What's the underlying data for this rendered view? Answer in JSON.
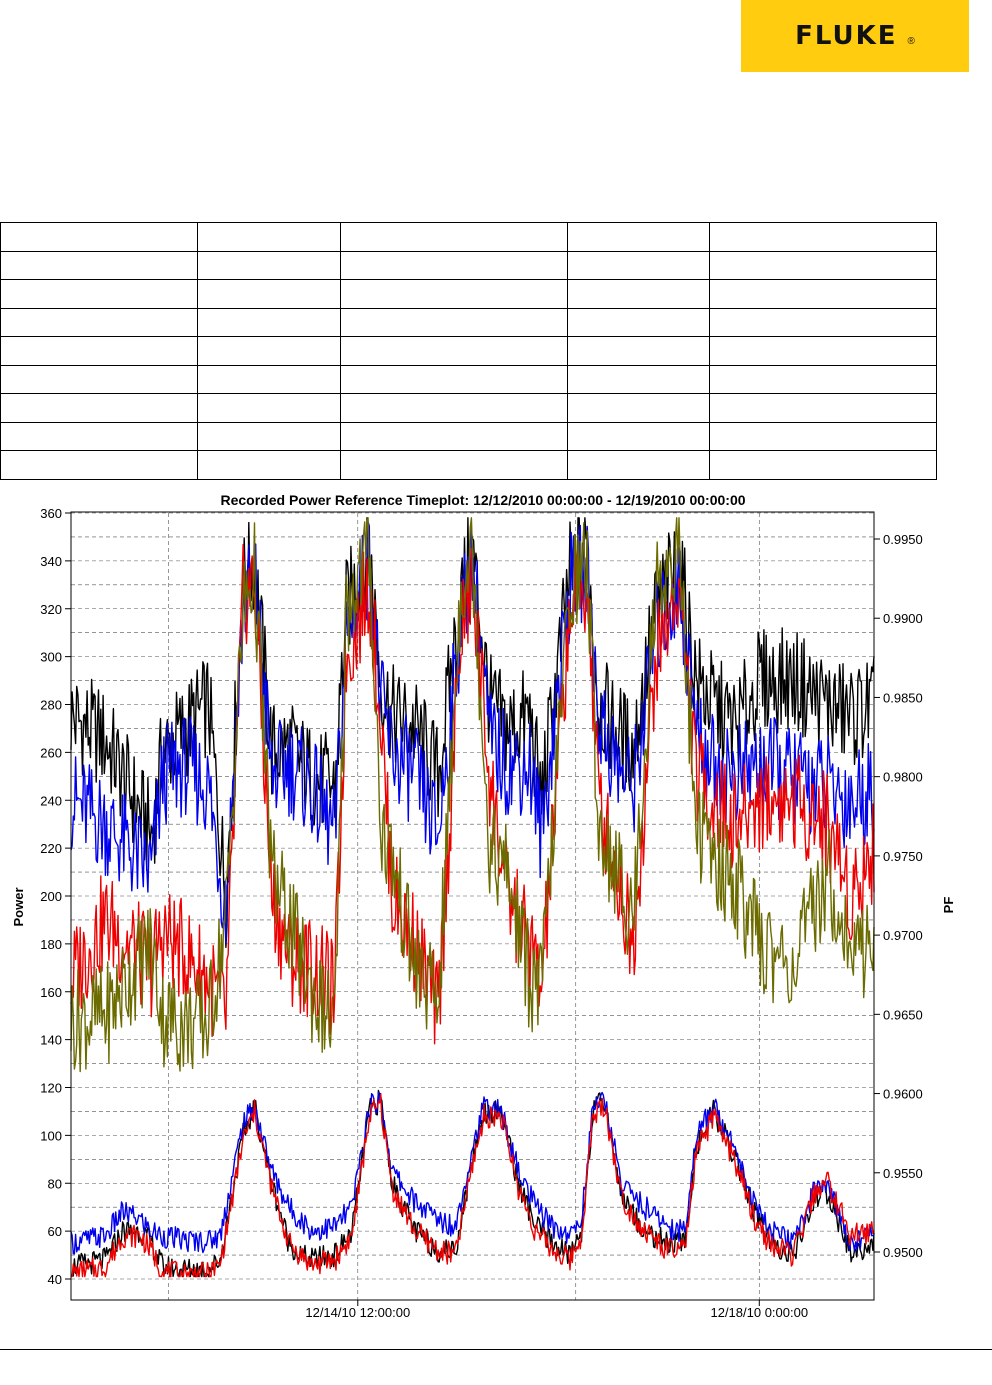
{
  "logo": {
    "text": "FLUKE",
    "reg": "®",
    "color": "#FFCC0F"
  },
  "table": {
    "rows": 9,
    "cols": 5
  },
  "chart_data": {
    "type": "line",
    "title": "Recorded Power Reference Timeplot: 12/12/2010 00:00:00 - 12/19/2010 00:00:00",
    "ylabel": "Power",
    "y2label": "PF",
    "ylim": [
      40,
      360
    ],
    "y2lim": [
      0.948,
      0.9965
    ],
    "yticks": [
      "360",
      "340",
      "320",
      "300",
      "280",
      "260",
      "240",
      "220",
      "200",
      "180",
      "160",
      "140",
      "120",
      "100",
      "80",
      "60",
      "40"
    ],
    "y2ticks": [
      "0.9950",
      "0.9900",
      "0.9850",
      "0.9800",
      "0.9750",
      "0.9700",
      "0.9650",
      "0.9600",
      "0.9550",
      "0.9500"
    ],
    "xlim": [
      0,
      7
    ],
    "xticks": [
      {
        "label": "12/14/10 12:00:00",
        "day": 2.5
      },
      {
        "label": "12/18/10 0:00:00",
        "day": 6
      }
    ],
    "grid": true,
    "series_colors": [
      "#000000",
      "#0000EE",
      "#EE0000",
      "#6B6B00"
    ],
    "series": [
      {
        "color": "#000000",
        "x": [
          0,
          0.3,
          0.7,
          0.8,
          1.0,
          1.2,
          1.35,
          1.5,
          1.6,
          1.75,
          1.9,
          2.1,
          2.3,
          2.4,
          2.6,
          2.7,
          2.8,
          3.0,
          3.2,
          3.4,
          3.5,
          3.65,
          3.8,
          4.0,
          4.1,
          4.35,
          4.5,
          4.6,
          4.75,
          4.9,
          5.1,
          5.3,
          5.45,
          5.6,
          5.8,
          6.0,
          6.3,
          6.6,
          6.8,
          7.0
        ],
        "values": [
          275,
          265,
          225,
          260,
          270,
          280,
          200,
          330,
          340,
          260,
          262,
          250,
          245,
          320,
          345,
          290,
          275,
          270,
          250,
          325,
          345,
          280,
          270,
          275,
          240,
          335,
          345,
          280,
          270,
          260,
          320,
          340,
          290,
          280,
          270,
          290,
          290,
          280,
          275,
          280
        ]
      },
      {
        "color": "#0000EE",
        "x": [
          0,
          0.3,
          0.7,
          0.8,
          1.0,
          1.2,
          1.35,
          1.5,
          1.6,
          1.75,
          1.9,
          2.1,
          2.3,
          2.4,
          2.6,
          2.7,
          2.8,
          3.0,
          3.2,
          3.4,
          3.5,
          3.65,
          3.8,
          4.0,
          4.1,
          4.35,
          4.5,
          4.6,
          4.75,
          4.9,
          5.1,
          5.3,
          5.45,
          5.6,
          5.8,
          6.0,
          6.3,
          6.6,
          6.8,
          7.0
        ],
        "values": [
          240,
          230,
          210,
          250,
          255,
          245,
          195,
          320,
          335,
          250,
          255,
          245,
          225,
          310,
          340,
          280,
          260,
          250,
          225,
          315,
          340,
          265,
          255,
          255,
          225,
          330,
          335,
          275,
          255,
          245,
          310,
          330,
          270,
          255,
          250,
          255,
          250,
          245,
          240,
          245
        ]
      },
      {
        "color": "#EE0000",
        "x": [
          0,
          0.3,
          0.7,
          0.8,
          1.0,
          1.2,
          1.35,
          1.5,
          1.6,
          1.75,
          1.9,
          2.1,
          2.3,
          2.4,
          2.6,
          2.7,
          2.8,
          3.0,
          3.2,
          3.4,
          3.5,
          3.65,
          3.8,
          4.0,
          4.1,
          4.35,
          4.5,
          4.6,
          4.75,
          4.9,
          5.1,
          5.3,
          5.45,
          5.6,
          5.8,
          6.0,
          6.3,
          6.6,
          6.8,
          7.0
        ],
        "values": [
          165,
          190,
          170,
          185,
          175,
          165,
          150,
          325,
          330,
          200,
          175,
          170,
          160,
          300,
          330,
          275,
          200,
          180,
          150,
          310,
          330,
          250,
          200,
          180,
          160,
          320,
          330,
          240,
          210,
          180,
          300,
          330,
          250,
          240,
          230,
          240,
          240,
          230,
          200,
          220
        ]
      },
      {
        "color": "#6B6B00",
        "x": [
          0,
          0.3,
          0.7,
          0.8,
          1.0,
          1.2,
          1.35,
          1.5,
          1.6,
          1.75,
          1.9,
          2.1,
          2.3,
          2.4,
          2.6,
          2.7,
          2.8,
          3.0,
          3.2,
          3.4,
          3.5,
          3.65,
          3.8,
          4.0,
          4.1,
          4.35,
          4.5,
          4.6,
          4.75,
          4.9,
          5.1,
          5.3,
          5.45,
          5.6,
          5.8,
          6.0,
          6.3,
          6.6,
          6.8,
          7.0
        ],
        "values": [
          148,
          150,
          180,
          150,
          146,
          148,
          190,
          320,
          335,
          210,
          190,
          160,
          145,
          320,
          345,
          230,
          215,
          170,
          155,
          330,
          345,
          220,
          210,
          165,
          160,
          330,
          340,
          230,
          210,
          190,
          330,
          345,
          230,
          215,
          205,
          180,
          170,
          210,
          175,
          182
        ]
      },
      {
        "color": "#000000",
        "x": [
          0,
          0.3,
          0.45,
          0.6,
          0.7,
          0.8,
          1.0,
          1.2,
          1.3,
          1.5,
          1.6,
          1.75,
          1.9,
          2.0,
          2.1,
          2.3,
          2.45,
          2.6,
          2.7,
          2.8,
          3.0,
          3.2,
          3.35,
          3.5,
          3.6,
          3.75,
          3.9,
          4.05,
          4.2,
          4.35,
          4.45,
          4.55,
          4.65,
          4.8,
          5.0,
          5.2,
          5.35,
          5.45,
          5.6,
          5.8,
          5.95,
          6.1,
          6.3,
          6.5,
          6.6,
          6.8,
          7.0
        ],
        "values": [
          45,
          48,
          60,
          60,
          55,
          45,
          44,
          44,
          48,
          100,
          112,
          80,
          55,
          50,
          48,
          50,
          60,
          110,
          115,
          80,
          60,
          52,
          52,
          90,
          110,
          110,
          80,
          62,
          55,
          50,
          60,
          110,
          115,
          75,
          60,
          55,
          55,
          95,
          110,
          90,
          68,
          55,
          50,
          75,
          75,
          50,
          55
        ]
      },
      {
        "color": "#0000EE",
        "x": [
          0,
          0.3,
          0.45,
          0.6,
          0.7,
          0.8,
          1.0,
          1.2,
          1.3,
          1.5,
          1.6,
          1.75,
          1.9,
          2.0,
          2.1,
          2.3,
          2.45,
          2.6,
          2.7,
          2.8,
          3.0,
          3.2,
          3.35,
          3.5,
          3.6,
          3.75,
          3.9,
          4.05,
          4.2,
          4.35,
          4.45,
          4.55,
          4.65,
          4.8,
          5.0,
          5.2,
          5.35,
          5.45,
          5.6,
          5.8,
          5.95,
          6.1,
          6.3,
          6.5,
          6.6,
          6.8,
          7.0
        ],
        "values": [
          55,
          58,
          68,
          65,
          60,
          58,
          56,
          56,
          58,
          105,
          112,
          85,
          70,
          65,
          60,
          62,
          70,
          112,
          115,
          85,
          72,
          65,
          62,
          95,
          112,
          110,
          85,
          70,
          62,
          58,
          65,
          112,
          115,
          80,
          70,
          62,
          60,
          100,
          112,
          95,
          72,
          60,
          55,
          80,
          78,
          55,
          60
        ]
      },
      {
        "color": "#EE0000",
        "x": [
          0,
          0.3,
          0.45,
          0.6,
          0.7,
          0.8,
          1.0,
          1.2,
          1.3,
          1.5,
          1.6,
          1.75,
          1.9,
          2.0,
          2.1,
          2.3,
          2.45,
          2.6,
          2.7,
          2.8,
          3.0,
          3.2,
          3.35,
          3.5,
          3.6,
          3.75,
          3.9,
          4.05,
          4.2,
          4.35,
          4.45,
          4.55,
          4.65,
          4.8,
          5.0,
          5.2,
          5.35,
          5.45,
          5.6,
          5.8,
          5.95,
          6.1,
          6.3,
          6.5,
          6.6,
          6.8,
          7.0
        ],
        "values": [
          42,
          45,
          58,
          58,
          52,
          43,
          42,
          42,
          46,
          98,
          110,
          78,
          55,
          50,
          46,
          48,
          58,
          108,
          113,
          78,
          60,
          52,
          50,
          88,
          108,
          108,
          78,
          60,
          52,
          48,
          58,
          108,
          113,
          74,
          60,
          52,
          52,
          92,
          108,
          88,
          66,
          54,
          50,
          78,
          80,
          58,
          60
        ]
      }
    ]
  }
}
